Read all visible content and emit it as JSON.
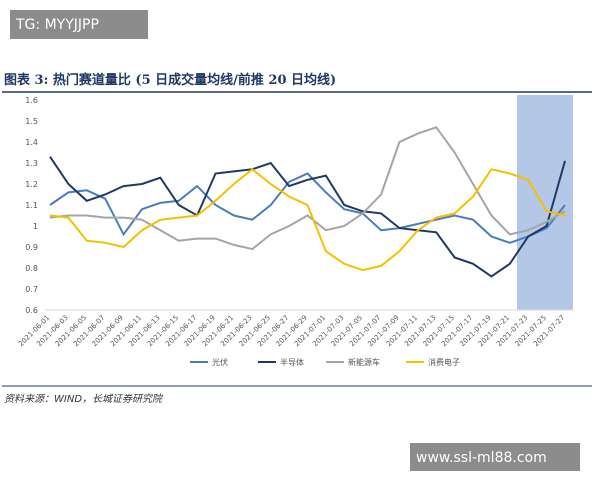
{
  "header": {
    "watermark": "TG: MYYJJPP"
  },
  "chart_data": {
    "type": "line",
    "title": "图表 3: 热门赛道量比 (5 日成交量均线/前推 20 日均线)",
    "categories": [
      "2021-06-01",
      "2021-06-03",
      "2021-06-05",
      "2021-06-07",
      "2021-06-09",
      "2021-06-11",
      "2021-06-13",
      "2021-06-15",
      "2021-06-17",
      "2021-06-19",
      "2021-06-21",
      "2021-06-23",
      "2021-06-25",
      "2021-06-27",
      "2021-06-29",
      "2021-07-01",
      "2021-07-03",
      "2021-07-05",
      "2021-07-07",
      "2021-07-09",
      "2021-07-11",
      "2021-07-13",
      "2021-07-15",
      "2021-07-17",
      "2021-07-19",
      "2021-07-21",
      "2021-07-23",
      "2021-07-25",
      "2021-07-27"
    ],
    "series": [
      {
        "name": "光伏",
        "color": "#4a7ebb",
        "values": [
          1.1,
          1.16,
          1.17,
          1.13,
          0.96,
          1.08,
          1.11,
          1.12,
          1.19,
          1.1,
          1.05,
          1.03,
          1.1,
          1.21,
          1.25,
          1.16,
          1.08,
          1.06,
          0.98,
          0.99,
          1.01,
          1.03,
          1.05,
          1.03,
          0.95,
          0.92,
          0.95,
          0.99,
          1.1
        ]
      },
      {
        "name": "半导体",
        "color": "#1f3864",
        "values": [
          1.33,
          1.2,
          1.12,
          1.15,
          1.19,
          1.2,
          1.23,
          1.1,
          1.05,
          1.25,
          1.26,
          1.27,
          1.3,
          1.19,
          1.22,
          1.24,
          1.1,
          1.07,
          1.06,
          0.99,
          0.98,
          0.97,
          0.85,
          0.82,
          0.76,
          0.82,
          0.95,
          1.0,
          1.31
        ]
      },
      {
        "name": "新能源车",
        "color": "#a5a5a5",
        "values": [
          1.04,
          1.05,
          1.05,
          1.04,
          1.04,
          1.03,
          0.98,
          0.93,
          0.94,
          0.94,
          0.91,
          0.89,
          0.96,
          1.0,
          1.05,
          0.98,
          1.0,
          1.06,
          1.15,
          1.4,
          1.44,
          1.47,
          1.35,
          1.2,
          1.05,
          0.96,
          0.98,
          1.02,
          1.07
        ]
      },
      {
        "name": "消费电子",
        "color": "#f5c000",
        "values": [
          1.05,
          1.04,
          0.93,
          0.92,
          0.9,
          0.98,
          1.03,
          1.04,
          1.05,
          1.12,
          1.2,
          1.27,
          1.2,
          1.14,
          1.1,
          0.88,
          0.82,
          0.79,
          0.81,
          0.88,
          0.98,
          1.04,
          1.06,
          1.14,
          1.27,
          1.25,
          1.22,
          1.07,
          1.05
        ]
      }
    ],
    "ylim": [
      0.6,
      1.6
    ],
    "yticks": [
      0.6,
      0.7,
      0.8,
      0.9,
      1,
      1.1,
      1.2,
      1.3,
      1.4,
      1.5,
      1.6
    ],
    "grid": false,
    "legend": "bottom"
  },
  "source": "资料来源：WIND，长城证券研究院",
  "footer": {
    "watermark": "www.ssl-ml88.com"
  }
}
